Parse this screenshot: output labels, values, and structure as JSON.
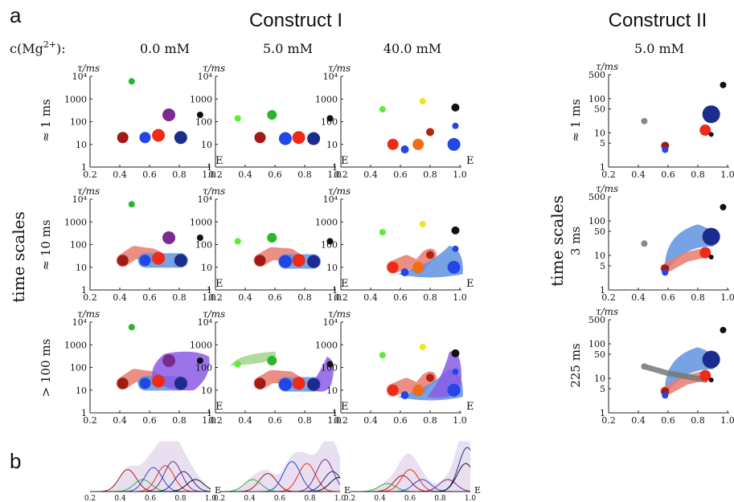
{
  "figure": {
    "panel_a_label": "a",
    "panel_b_label": "b",
    "construct1_title": "Construct I",
    "construct2_title": "Construct II",
    "mg_label": "c(Mg",
    "mg_sup": "2+",
    "mg_close": "):",
    "conditions": [
      "0.0 mM",
      "5.0 mM",
      "40.0 mM",
      "5.0 mM"
    ],
    "time_scales_label": "time scales",
    "row_labels": [
      "≈ 1 ms",
      "≈ 10 ms",
      "> 100 ms"
    ],
    "row_labels_c2": [
      "≈ 1 ms",
      "3 ms",
      "225 ms"
    ],
    "x_axis_letter": "E",
    "y_axis_label": "τ/ms",
    "c1_yticks": [
      "10⁴",
      "1000",
      "100",
      "10",
      "1"
    ],
    "c2_yticks": [
      "500",
      "100",
      "50",
      "10",
      "5",
      "1"
    ],
    "xticks": [
      "0.2",
      "0.4",
      "0.6",
      "0.8",
      "1.0"
    ],
    "b_xticks": [
      "0.2",
      "0.4",
      "0.6",
      "0.8",
      "1.0"
    ]
  },
  "chart_data": {
    "type": "scatter",
    "xlabel": "E",
    "ylabel": "τ/ms",
    "xlim": [
      0.2,
      1.0
    ],
    "yscale": "log",
    "colors": {
      "darkred": "#a11a15",
      "red": "#ee2a19",
      "blue": "#2346e6",
      "navy": "#1c2b8e",
      "purple": "#7b2a8e",
      "green": "#2bb52b",
      "lime": "#5aee2f",
      "black": "#111111",
      "yellow": "#f5e21b",
      "orange": "#f26c12",
      "darkred2": "#b22410",
      "gray": "#888888",
      "blob_red": "#e87a6d",
      "blob_blue": "#5f93e0",
      "blob_violet": "#8a5ce6",
      "blob_green": "#9fd68a",
      "blob_gray": "#777777"
    },
    "construct1": [
      {
        "condition": "0.0 mM",
        "points": [
          {
            "E": 0.42,
            "tau": 20,
            "r": 7,
            "c": "darkred"
          },
          {
            "E": 0.57,
            "tau": 20,
            "r": 7,
            "c": "blue"
          },
          {
            "E": 0.66,
            "tau": 25,
            "r": 8,
            "c": "red"
          },
          {
            "E": 0.81,
            "tau": 20,
            "r": 8,
            "c": "navy"
          },
          {
            "E": 0.73,
            "tau": 200,
            "r": 8,
            "c": "purple"
          },
          {
            "E": 0.94,
            "tau": 200,
            "r": 4,
            "c": "black"
          },
          {
            "E": 0.48,
            "tau": 6000,
            "r": 4,
            "c": "green"
          }
        ]
      },
      {
        "condition": "5.0 mM",
        "points": [
          {
            "E": 0.35,
            "tau": 140,
            "r": 4,
            "c": "lime"
          },
          {
            "E": 0.58,
            "tau": 200,
            "r": 6,
            "c": "green"
          },
          {
            "E": 0.5,
            "tau": 20,
            "r": 7,
            "c": "darkred"
          },
          {
            "E": 0.67,
            "tau": 18,
            "r": 8,
            "c": "blue"
          },
          {
            "E": 0.76,
            "tau": 20,
            "r": 8,
            "c": "red"
          },
          {
            "E": 0.86,
            "tau": 18,
            "r": 8,
            "c": "navy"
          },
          {
            "E": 0.97,
            "tau": 140,
            "r": 4,
            "c": "black"
          }
        ]
      },
      {
        "condition": "40.0 mM",
        "points": [
          {
            "E": 0.48,
            "tau": 350,
            "r": 4,
            "c": "lime"
          },
          {
            "E": 0.75,
            "tau": 800,
            "r": 4,
            "c": "yellow"
          },
          {
            "E": 0.97,
            "tau": 420,
            "r": 5,
            "c": "black"
          },
          {
            "E": 0.8,
            "tau": 35,
            "r": 5,
            "c": "darkred2"
          },
          {
            "E": 0.97,
            "tau": 65,
            "r": 4,
            "c": "blue"
          },
          {
            "E": 0.55,
            "tau": 10,
            "r": 7,
            "c": "red"
          },
          {
            "E": 0.63,
            "tau": 6,
            "r": 5,
            "c": "blue"
          },
          {
            "E": 0.72,
            "tau": 10,
            "r": 7,
            "c": "orange"
          },
          {
            "E": 0.96,
            "tau": 10,
            "r": 8,
            "c": "blue"
          }
        ]
      }
    ],
    "construct2": [
      {
        "condition": "5.0 mM",
        "points": [
          {
            "E": 0.44,
            "tau": 22,
            "r": 4,
            "c": "gray"
          },
          {
            "E": 0.58,
            "tau": 4.2,
            "r": 5,
            "c": "darkred"
          },
          {
            "E": 0.58,
            "tau": 3.2,
            "r": 4,
            "c": "blue"
          },
          {
            "E": 0.85,
            "tau": 12,
            "r": 7,
            "c": "red"
          },
          {
            "E": 0.89,
            "tau": 35,
            "r": 11,
            "c": "navy"
          },
          {
            "E": 0.89,
            "tau": 9,
            "r": 3,
            "c": "black"
          },
          {
            "E": 0.97,
            "tau": 250,
            "r": 4,
            "c": "black"
          }
        ]
      }
    ],
    "hist_series": [
      "darkred",
      "green",
      "blue",
      "red",
      "purple",
      "navy",
      "black"
    ]
  }
}
